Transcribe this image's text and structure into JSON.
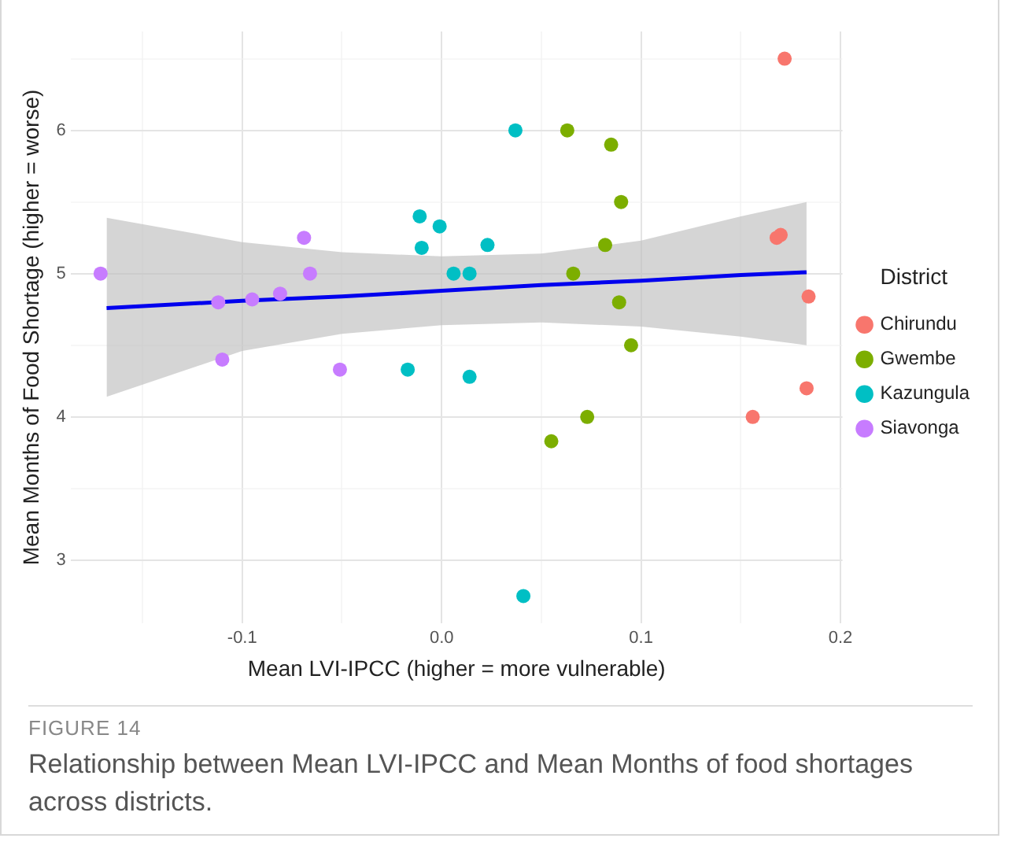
{
  "chart_data": {
    "type": "scatter",
    "xlabel": "Mean LVI-IPCC (higher = more vulnerable)",
    "ylabel": "Mean Months of Food Shortage (higher = worse)",
    "legend_title": "District",
    "legend": "right",
    "grid": true,
    "marker": "circle",
    "xlim": [
      -0.186,
      0.201
    ],
    "ylim": [
      2.56,
      6.69
    ],
    "xticks": [
      {
        "value": -0.15,
        "label": null
      },
      -0.1,
      {
        "value": -0.05,
        "label": null
      },
      {
        "value": 0,
        "label": "0.0"
      },
      {
        "value": 0.05,
        "label": null
      },
      0.1,
      {
        "value": 0.15,
        "label": null
      },
      0.2
    ],
    "yticks": [
      3,
      {
        "value": 3.5,
        "label": null
      },
      4,
      {
        "value": 4.5,
        "label": null
      },
      5,
      {
        "value": 5.5,
        "label": null
      },
      6,
      {
        "value": 6.5,
        "label": null
      }
    ],
    "series": [
      {
        "name": "Chirundu",
        "color": "#f8766d",
        "x": [
          0.172,
          0.17,
          0.168,
          0.184,
          0.183,
          0.156
        ],
        "values": [
          6.5,
          5.27,
          5.25,
          4.84,
          4.2,
          4.0
        ]
      },
      {
        "name": "Gwembe",
        "color": "#7cae00",
        "x": [
          0.063,
          0.085,
          0.09,
          0.082,
          0.066,
          0.089,
          0.095,
          0.073,
          0.055
        ],
        "values": [
          6.0,
          5.9,
          5.5,
          5.2,
          5.0,
          4.8,
          4.5,
          4.0,
          3.83
        ]
      },
      {
        "name": "Kazungula",
        "color": "#00bfc4",
        "x": [
          -0.011,
          -0.001,
          -0.01,
          0.023,
          0.006,
          0.014,
          0.037,
          -0.017,
          0.014,
          0.041
        ],
        "values": [
          5.4,
          5.33,
          5.18,
          5.2,
          5.0,
          5.0,
          6.0,
          4.33,
          4.28,
          2.75
        ]
      },
      {
        "name": "Siavonga",
        "color": "#c77cff",
        "x": [
          -0.171,
          -0.112,
          -0.11,
          -0.095,
          -0.081,
          -0.069,
          -0.066,
          -0.051
        ],
        "values": [
          5.0,
          4.8,
          4.4,
          4.82,
          4.86,
          5.25,
          5.0,
          4.33
        ]
      },
      {
        "type": "line",
        "marker": "none",
        "color": "#0000ee",
        "x": [
          -0.168,
          -0.1,
          -0.05,
          0,
          0.05,
          0.1,
          0.15,
          0.183
        ],
        "values": [
          4.76,
          4.81,
          4.84,
          4.88,
          4.92,
          4.95,
          4.99,
          5.01
        ],
        "lower": [
          4.14,
          4.46,
          4.58,
          4.64,
          4.66,
          4.63,
          4.56,
          4.5
        ],
        "upper": [
          5.39,
          5.22,
          5.15,
          5.12,
          5.14,
          5.23,
          5.4,
          5.5
        ]
      }
    ],
    "annotations": [
      "FIGURE 14",
      "Relationship between Mean LVI-IPCC and Mean Months of food shortages across districts."
    ]
  }
}
